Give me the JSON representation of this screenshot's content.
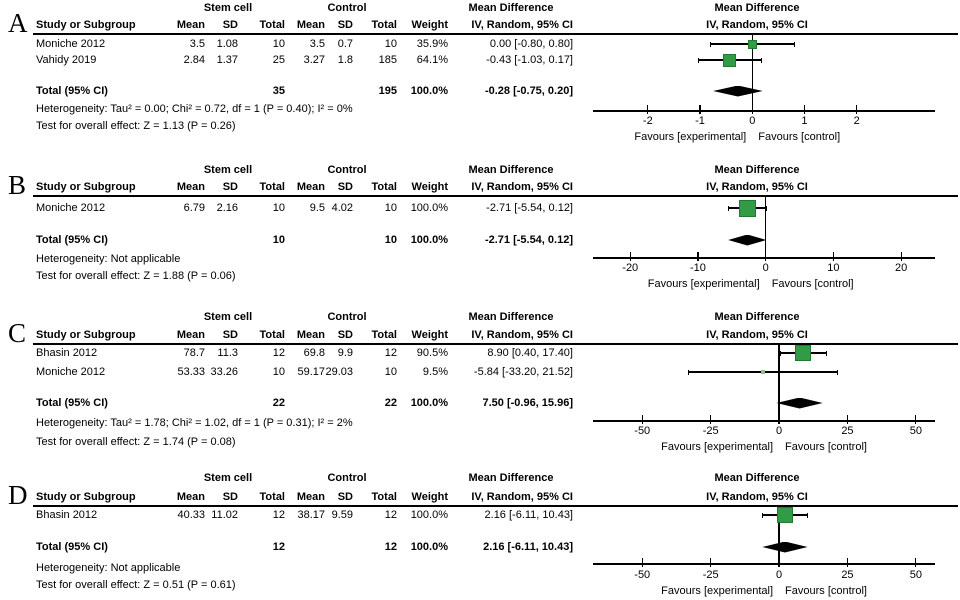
{
  "headers": {
    "study_col": "Study or Subgroup",
    "group_experimental": "Stem cell",
    "group_control": "Control",
    "mean": "Mean",
    "sd": "SD",
    "total": "Total",
    "weight": "Weight",
    "md_header": "Mean Difference",
    "md_sub": "IV, Random, 95% CI"
  },
  "colors": {
    "marker_fill": "#339a46",
    "marker_border": "#1f7a30",
    "marker_small_fill": "#8fbf8f",
    "diamond_fill": "#000000",
    "line": "#000000"
  },
  "chart_data": [
    {
      "panel_label": "A",
      "type": "forest",
      "effect_measure": "Mean Difference, IV, Random, 95% CI",
      "studies": [
        {
          "name": "Moniche 2012",
          "exp": {
            "mean": "3.5",
            "sd": "1.08",
            "total": "10"
          },
          "ctrl": {
            "mean": "3.5",
            "sd": "0.7",
            "total": "10"
          },
          "weight": "35.9%",
          "md": 0.0,
          "ci_low": -0.8,
          "ci_high": 0.8,
          "md_label": "0.00 [-0.80, 0.80]",
          "marker_size": 9
        },
        {
          "name": "Vahidy 2019",
          "exp": {
            "mean": "2.84",
            "sd": "1.37",
            "total": "25"
          },
          "ctrl": {
            "mean": "3.27",
            "sd": "1.8",
            "total": "185"
          },
          "weight": "64.1%",
          "md": -0.43,
          "ci_low": -1.03,
          "ci_high": 0.17,
          "md_label": "-0.43 [-1.03, 0.17]",
          "marker_size": 13
        }
      ],
      "total_row": {
        "label": "Total (95% CI)",
        "exp_total": "35",
        "ctrl_total": "195",
        "weight": "100.0%",
        "md": -0.28,
        "ci_low": -0.75,
        "ci_high": 0.2,
        "md_label": "-0.28 [-0.75, 0.20]"
      },
      "heterogeneity": "Heterogeneity: Tau² = 0.00; Chi² = 0.72, df = 1 (P = 0.40); I² = 0%",
      "overall_effect": "Test for overall effect: Z = 1.13 (P = 0.26)",
      "axis": {
        "min": -3.05,
        "max": 3.5,
        "tick_values": [
          -2,
          -1,
          0,
          1,
          2
        ],
        "tick_labels": [
          "-2",
          "-1",
          "0",
          "1",
          "2"
        ]
      },
      "favours_left": "Favours [experimental]",
      "favours_right": "Favours [control]"
    },
    {
      "panel_label": "B",
      "type": "forest",
      "effect_measure": "Mean Difference, IV, Random, 95% CI",
      "studies": [
        {
          "name": "Moniche 2012",
          "exp": {
            "mean": "6.79",
            "sd": "2.16",
            "total": "10"
          },
          "ctrl": {
            "mean": "9.5",
            "sd": "4.02",
            "total": "10"
          },
          "weight": "100.0%",
          "md": -2.71,
          "ci_low": -5.54,
          "ci_high": 0.12,
          "md_label": "-2.71 [-5.54, 0.12]",
          "marker_size": 17
        }
      ],
      "total_row": {
        "label": "Total (95% CI)",
        "exp_total": "10",
        "ctrl_total": "10",
        "weight": "100.0%",
        "md": -2.71,
        "ci_low": -5.54,
        "ci_high": 0.12,
        "md_label": "-2.71 [-5.54, 0.12]"
      },
      "heterogeneity": "Heterogeneity: Not applicable",
      "overall_effect": "Test for overall effect: Z = 1.88 (P = 0.06)",
      "axis": {
        "min": -25.5,
        "max": 25,
        "tick_values": [
          -20,
          -10,
          0,
          10,
          20
        ],
        "tick_labels": [
          "-20",
          "-10",
          "0",
          "10",
          "20"
        ]
      },
      "favours_left": "Favours [experimental]",
      "favours_right": "Favours [control]"
    },
    {
      "panel_label": "C",
      "type": "forest",
      "effect_measure": "Mean Difference, IV, Random, 95% CI",
      "studies": [
        {
          "name": "Bhasin 2012",
          "exp": {
            "mean": "78.7",
            "sd": "11.3",
            "total": "12"
          },
          "ctrl": {
            "mean": "69.8",
            "sd": "9.9",
            "total": "12"
          },
          "weight": "90.5%",
          "md": 8.9,
          "ci_low": 0.4,
          "ci_high": 17.4,
          "md_label": "8.90 [0.40, 17.40]",
          "marker_size": 16
        },
        {
          "name": "Moniche 2012",
          "exp": {
            "mean": "53.33",
            "sd": "33.26",
            "total": "10"
          },
          "ctrl": {
            "mean": "59.17",
            "sd": "29.03",
            "total": "10"
          },
          "weight": "9.5%",
          "md": -5.84,
          "ci_low": -33.2,
          "ci_high": 21.52,
          "md_label": "-5.84 [-33.20, 21.52]",
          "marker_size": 4
        }
      ],
      "total_row": {
        "label": "Total (95% CI)",
        "exp_total": "22",
        "ctrl_total": "22",
        "weight": "100.0%",
        "md": 7.5,
        "ci_low": -0.96,
        "ci_high": 15.96,
        "md_label": "7.50 [-0.96, 15.96]"
      },
      "heterogeneity": "Heterogeneity: Tau² = 1.78; Chi² = 1.02, df = 1 (P = 0.31); I² = 2%",
      "overall_effect": "Test for overall effect: Z = 1.74 (P = 0.08)",
      "axis": {
        "min": -68,
        "max": 57,
        "tick_values": [
          -50,
          -25,
          0,
          25,
          50
        ],
        "tick_labels": [
          "-50",
          "-25",
          "0",
          "25",
          "50"
        ]
      },
      "favours_left": "Favours [experimental]",
      "favours_right": "Favours [control]"
    },
    {
      "panel_label": "D",
      "type": "forest",
      "effect_measure": "Mean Difference, IV, Random, 95% CI",
      "studies": [
        {
          "name": "Bhasin 2012",
          "exp": {
            "mean": "40.33",
            "sd": "11.02",
            "total": "12"
          },
          "ctrl": {
            "mean": "38.17",
            "sd": "9.59",
            "total": "12"
          },
          "weight": "100.0%",
          "md": 2.16,
          "ci_low": -6.11,
          "ci_high": 10.43,
          "md_label": "2.16 [-6.11, 10.43]",
          "marker_size": 16
        }
      ],
      "total_row": {
        "label": "Total (95% CI)",
        "exp_total": "12",
        "ctrl_total": "12",
        "weight": "100.0%",
        "md": 2.16,
        "ci_low": -6.11,
        "ci_high": 10.43,
        "md_label": "2.16 [-6.11, 10.43]"
      },
      "heterogeneity": "Heterogeneity: Not applicable",
      "overall_effect": "Test for overall effect: Z = 0.51 (P = 0.61)",
      "axis": {
        "min": -68,
        "max": 57,
        "tick_values": [
          -50,
          -25,
          0,
          25,
          50
        ],
        "tick_labels": [
          "-50",
          "-25",
          "0",
          "25",
          "50"
        ]
      },
      "favours_left": "Favours [experimental]",
      "favours_right": "Favours [control]"
    }
  ]
}
